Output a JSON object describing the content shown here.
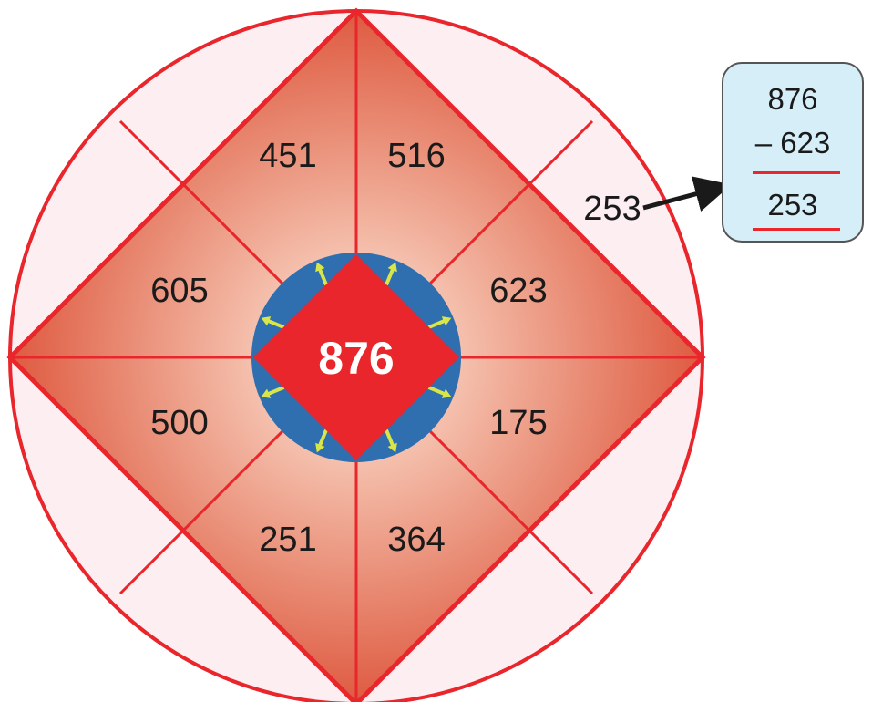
{
  "center": {
    "value": "876"
  },
  "inner_segments": [
    {
      "id": "top-left",
      "value": "451"
    },
    {
      "id": "top-right",
      "value": "516"
    },
    {
      "id": "right-upper",
      "value": "623"
    },
    {
      "id": "right-lower",
      "value": "175"
    },
    {
      "id": "bottom-right",
      "value": "364"
    },
    {
      "id": "bottom-left",
      "value": "251"
    },
    {
      "id": "left-lower",
      "value": "500"
    },
    {
      "id": "left-upper",
      "value": "605"
    }
  ],
  "outer_answers": [
    {
      "id": "right-upper",
      "value": "253"
    }
  ],
  "worked_example": {
    "minuend": "876",
    "subtrahend": "– 623",
    "result": "253"
  },
  "colors": {
    "ring_fill": "#fdeef2",
    "stroke": "#e8262b",
    "center_fill": "#e8262b",
    "hub_fill": "#2f6fb0",
    "arrow": "#d8e64a",
    "box_fill": "#d6eef8"
  }
}
